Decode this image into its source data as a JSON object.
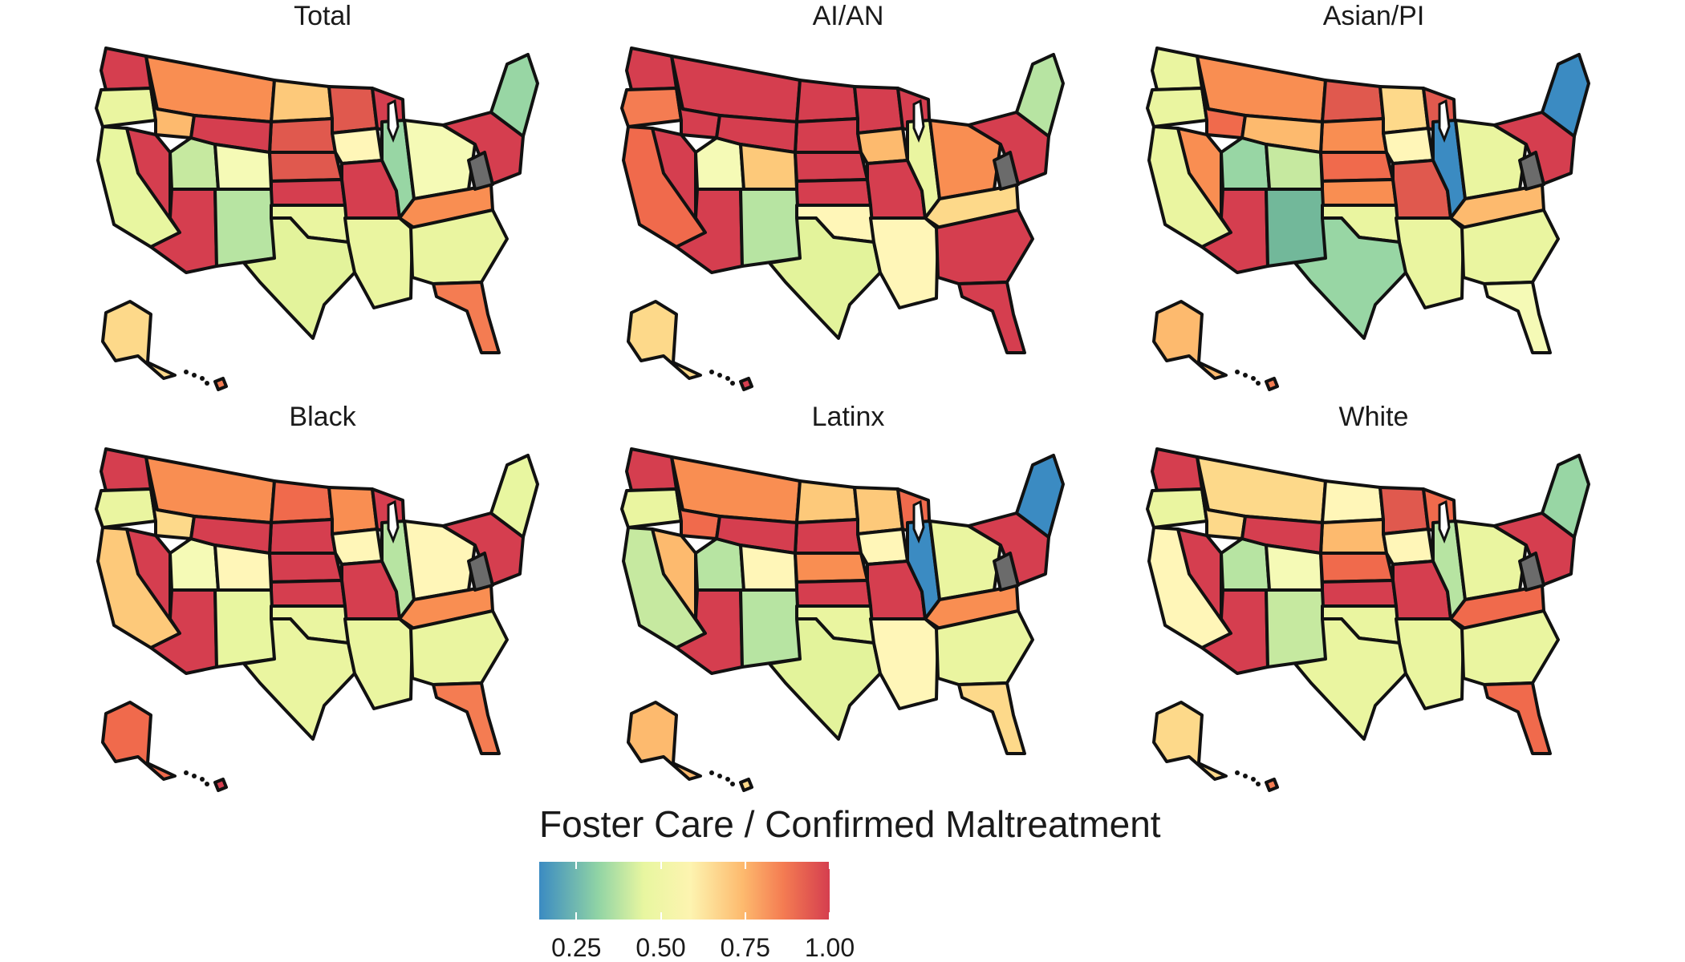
{
  "panels": [
    {
      "title": "Total",
      "colors": {
        "west_nw": "#d53e4f",
        "nw_interior": "#eaf5a0",
        "montana": "#f98e52",
        "dakota_n": "#fdc97a",
        "dakota_s": "#e0594e",
        "minnesota": "#e0594e",
        "california": "#e8f6a0",
        "nevada": "#d53e4f",
        "idaho": "#fdba6e",
        "utah": "#c6e9a0",
        "wyoming": "#d53e4f",
        "colorado": "#f5fab6",
        "nebraska": "#e0594e",
        "kansas": "#d53e4f",
        "iowa": "#fff6b8",
        "arizona": "#d53e4f",
        "new_mexico": "#b7e4a2",
        "texas": "#e3f39b",
        "oklahoma": "#eaf5a0",
        "missouri": "#d53e4f",
        "wisconsin": "#d53e4f",
        "illinois": "#98d6a4",
        "south_central": "#eaf5a0",
        "southeast": "#eaf5a0",
        "florida": "#f47c52",
        "appalachia": "#f98e52",
        "midwest_east": "#f5fab6",
        "northeast": "#d53e4f",
        "new_england": "#98d6a4",
        "alaska": "#fdd98a",
        "hawaii": "#f47c52",
        "west_virginia": "#6b6b6b"
      }
    },
    {
      "title": "AI/AN",
      "colors": {
        "west_nw": "#d53e4f",
        "nw_interior": "#f47c52",
        "montana": "#d53e4f",
        "dakota_n": "#d53e4f",
        "dakota_s": "#d53e4f",
        "minnesota": "#d53e4f",
        "california": "#f06a4c",
        "nevada": "#d53e4f",
        "idaho": "#d53e4f",
        "utah": "#f5fab6",
        "wyoming": "#d53e4f",
        "colorado": "#fdc97a",
        "nebraska": "#d53e4f",
        "kansas": "#d53e4f",
        "iowa": "#fdba6e",
        "arizona": "#d53e4f",
        "new_mexico": "#b7e4a2",
        "texas": "#e3f39b",
        "oklahoma": "#fff6b8",
        "missouri": "#d53e4f",
        "wisconsin": "#d53e4f",
        "illinois": "#eaf5a0",
        "south_central": "#fff6b8",
        "southeast": "#d53e4f",
        "florida": "#d53e4f",
        "appalachia": "#fdd98a",
        "midwest_east": "#f98e52",
        "northeast": "#d53e4f",
        "new_england": "#b7e4a2",
        "alaska": "#fdd98a",
        "hawaii": "#d53e4f",
        "west_virginia": "#6b6b6b"
      }
    },
    {
      "title": "Asian/PI",
      "colors": {
        "west_nw": "#eaf5a0",
        "nw_interior": "#eaf5a0",
        "montana": "#f98e52",
        "dakota_n": "#e0594e",
        "dakota_s": "#f98e52",
        "minnesota": "#fdd98a",
        "california": "#eaf5a0",
        "nevada": "#f98e52",
        "idaho": "#f06a4c",
        "utah": "#98d6a4",
        "wyoming": "#fdba6e",
        "colorado": "#c6e9a0",
        "nebraska": "#f06a4c",
        "kansas": "#f98e52",
        "iowa": "#fff6b8",
        "arizona": "#d53e4f",
        "new_mexico": "#72b89a",
        "texas": "#98d6a4",
        "oklahoma": "#eaf5a0",
        "missouri": "#e0594e",
        "wisconsin": "#e0594e",
        "illinois": "#3b8bc2",
        "south_central": "#eaf5a0",
        "southeast": "#eaf5a0",
        "florida": "#f5fab6",
        "appalachia": "#fdba6e",
        "midwest_east": "#eaf5a0",
        "northeast": "#d53e4f",
        "new_england": "#3b8bc2",
        "alaska": "#fdba6e",
        "hawaii": "#f47c52",
        "west_virginia": "#6b6b6b"
      }
    },
    {
      "title": "Black",
      "colors": {
        "west_nw": "#d53e4f",
        "nw_interior": "#eaf5a0",
        "montana": "#f98e52",
        "dakota_n": "#f06a4c",
        "dakota_s": "#d53e4f",
        "minnesota": "#f98e52",
        "california": "#fdc97a",
        "nevada": "#d53e4f",
        "idaho": "#fdd98a",
        "utah": "#f5fab6",
        "wyoming": "#d53e4f",
        "colorado": "#fff6b8",
        "nebraska": "#d53e4f",
        "kansas": "#d53e4f",
        "iowa": "#fff6b8",
        "arizona": "#d53e4f",
        "new_mexico": "#e8f6a0",
        "texas": "#eaf5a0",
        "oklahoma": "#eaf5a0",
        "missouri": "#d53e4f",
        "wisconsin": "#d53e4f",
        "illinois": "#b7e4a2",
        "south_central": "#eaf5a0",
        "southeast": "#eaf5a0",
        "florida": "#f47c52",
        "appalachia": "#f98e52",
        "midwest_east": "#fff6b8",
        "northeast": "#d53e4f",
        "new_england": "#e8f6a0",
        "alaska": "#f06a4c",
        "hawaii": "#d53e4f",
        "west_virginia": "#6b6b6b"
      }
    },
    {
      "title": "Latinx",
      "colors": {
        "west_nw": "#d53e4f",
        "nw_interior": "#eaf5a0",
        "montana": "#f98e52",
        "dakota_n": "#fdc97a",
        "dakota_s": "#d53e4f",
        "minnesota": "#fdc97a",
        "california": "#c6e9a0",
        "nevada": "#fdba6e",
        "idaho": "#f06a4c",
        "utah": "#b7e4a2",
        "wyoming": "#d53e4f",
        "colorado": "#fff6b8",
        "nebraska": "#f98e52",
        "kansas": "#d53e4f",
        "iowa": "#fff6b8",
        "arizona": "#d53e4f",
        "new_mexico": "#b7e4a2",
        "texas": "#e3f39b",
        "oklahoma": "#eaf5a0",
        "missouri": "#d53e4f",
        "wisconsin": "#f06a4c",
        "illinois": "#3b8bc2",
        "south_central": "#fff6b8",
        "southeast": "#eaf5a0",
        "florida": "#fdd98a",
        "appalachia": "#f98e52",
        "midwest_east": "#eaf5a0",
        "northeast": "#d53e4f",
        "new_england": "#3b8bc2",
        "alaska": "#fdba6e",
        "hawaii": "#fdd98a",
        "west_virginia": "#6b6b6b"
      }
    },
    {
      "title": "White",
      "colors": {
        "west_nw": "#d53e4f",
        "nw_interior": "#eaf5a0",
        "montana": "#fdd98a",
        "dakota_n": "#fff6b8",
        "dakota_s": "#fdba6e",
        "minnesota": "#e0594e",
        "california": "#fff6b8",
        "nevada": "#d53e4f",
        "idaho": "#fdd98a",
        "utah": "#b7e4a2",
        "wyoming": "#d53e4f",
        "colorado": "#f5fab6",
        "nebraska": "#f06a4c",
        "kansas": "#d53e4f",
        "iowa": "#fff6b8",
        "arizona": "#d53e4f",
        "new_mexico": "#c6e9a0",
        "texas": "#eaf5a0",
        "oklahoma": "#eaf5a0",
        "missouri": "#d53e4f",
        "wisconsin": "#f06a4c",
        "illinois": "#b7e4a2",
        "south_central": "#eaf5a0",
        "southeast": "#eaf5a0",
        "florida": "#f06a4c",
        "appalachia": "#f06a4c",
        "midwest_east": "#eaf5a0",
        "northeast": "#d53e4f",
        "new_england": "#98d6a4",
        "alaska": "#fdd98a",
        "hawaii": "#f47c52",
        "west_virginia": "#6b6b6b"
      }
    }
  ],
  "legend": {
    "title": "Foster Care / Confirmed Maltreatment",
    "min": 0.14,
    "max": 1.0,
    "ticks": [
      {
        "value": 0.25,
        "label": "0.25"
      },
      {
        "value": 0.5,
        "label": "0.50"
      },
      {
        "value": 0.75,
        "label": "0.75"
      },
      {
        "value": 1.0,
        "label": "1.00"
      }
    ]
  }
}
